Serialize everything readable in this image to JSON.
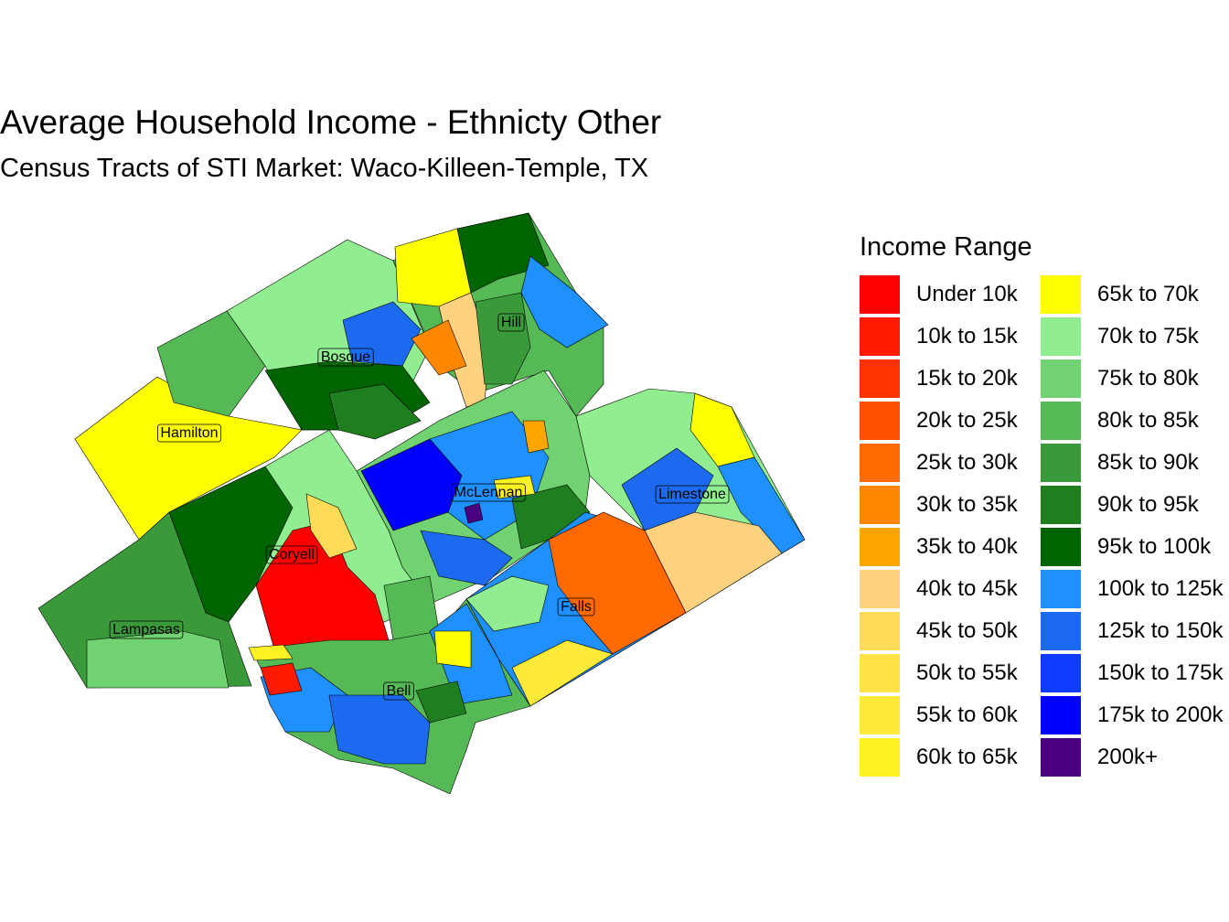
{
  "title": "Average Household Income - Ethnicty Other",
  "subtitle": "Census Tracts of STI Market: Waco-Killeen-Temple, TX",
  "legend": {
    "title": "Income Range",
    "items": [
      {
        "label": "Under 10k",
        "color": "#FF0000"
      },
      {
        "label": "10k to 15k",
        "color": "#FF1A00"
      },
      {
        "label": "15k to 20k",
        "color": "#FF3300"
      },
      {
        "label": "20k to 25k",
        "color": "#FF5000"
      },
      {
        "label": "25k to 30k",
        "color": "#FF6A00"
      },
      {
        "label": "30k to 35k",
        "color": "#FF8800"
      },
      {
        "label": "35k to 40k",
        "color": "#FFA500"
      },
      {
        "label": "40k to 45k",
        "color": "#FFD27F"
      },
      {
        "label": "45k to 50k",
        "color": "#FFDB58"
      },
      {
        "label": "50k to 55k",
        "color": "#FFE347"
      },
      {
        "label": "55k to 60k",
        "color": "#FFEA3A"
      },
      {
        "label": "60k to 65k",
        "color": "#FFF222"
      },
      {
        "label": "65k to 70k",
        "color": "#FFFF00"
      },
      {
        "label": "70k to 75k",
        "color": "#90EE90"
      },
      {
        "label": "75k to 80k",
        "color": "#70D270"
      },
      {
        "label": "80k to 85k",
        "color": "#55B955"
      },
      {
        "label": "85k to 90k",
        "color": "#3A9A3A"
      },
      {
        "label": "90k to 95k",
        "color": "#1F7F1F"
      },
      {
        "label": "95k to 100k",
        "color": "#006400"
      },
      {
        "label": "100k to 125k",
        "color": "#1E90FF"
      },
      {
        "label": "125k to 150k",
        "color": "#1C6AF0"
      },
      {
        "label": "150k to 175k",
        "color": "#0F3BFF"
      },
      {
        "label": "175k to 200k",
        "color": "#0000FF"
      },
      {
        "label": "200k+",
        "color": "#4B0082"
      }
    ]
  },
  "counties": [
    {
      "name": "Hill"
    },
    {
      "name": "Bosque"
    },
    {
      "name": "Hamilton"
    },
    {
      "name": "McLennan"
    },
    {
      "name": "Limestone"
    },
    {
      "name": "Coryell"
    },
    {
      "name": "Lampasas"
    },
    {
      "name": "Falls"
    },
    {
      "name": "Bell"
    }
  ]
}
